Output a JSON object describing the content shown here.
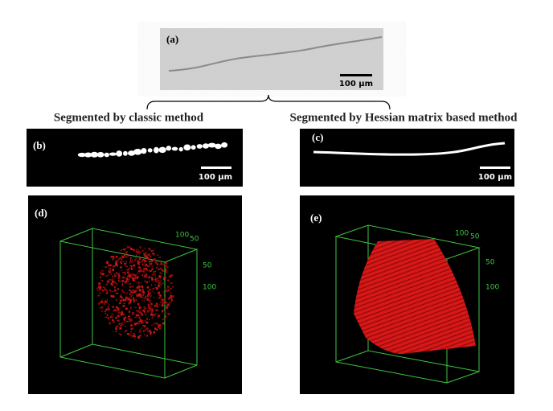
{
  "figure": {
    "panels": {
      "a": {
        "label": "(a)",
        "scale_bar": "100 µm"
      },
      "b": {
        "label": "(b)",
        "scale_bar": "100 µm"
      },
      "c": {
        "label": "(c)",
        "scale_bar": "100 µm"
      },
      "d": {
        "label": "(d)",
        "top_ticks": [
          "100",
          "50"
        ],
        "side_ticks": [
          "50",
          "100"
        ]
      },
      "e": {
        "label": "(e)",
        "top_ticks": [
          "100",
          "50"
        ],
        "side_ticks": [
          "50",
          "100"
        ]
      }
    },
    "headings": {
      "left": "Segmented by classic method",
      "right": "Segmented by Hessian matrix based method"
    }
  }
}
